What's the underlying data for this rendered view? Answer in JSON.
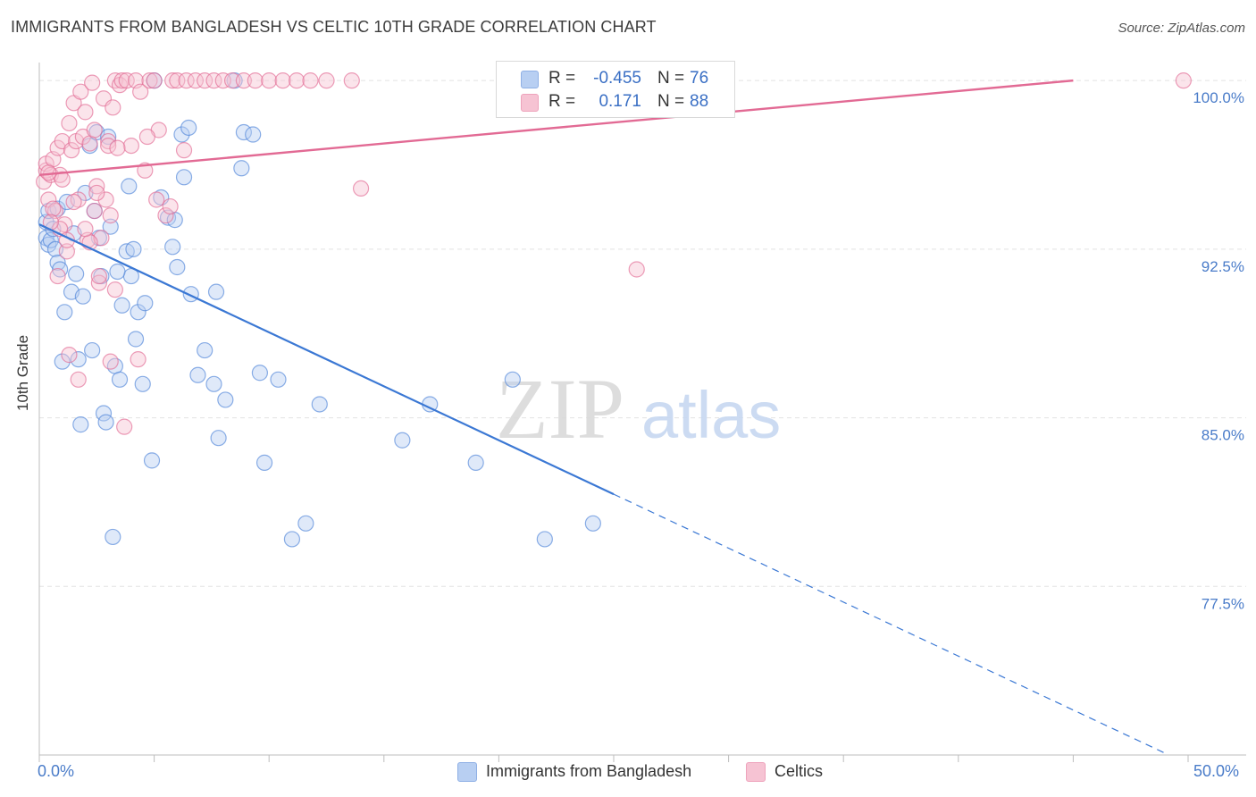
{
  "header": {
    "title": "IMMIGRANTS FROM BANGLADESH VS CELTIC 10TH GRADE CORRELATION CHART",
    "source": "Source: ZipAtlas.com"
  },
  "watermark": {
    "zip": "ZIP",
    "atlas": "atlas"
  },
  "legend": {
    "rows": [
      {
        "r_label": "R =",
        "r_value": "-0.455",
        "n_label": "N =",
        "n_value": "76",
        "color": "#a9c4ef"
      },
      {
        "r_label": "R =",
        "r_value": "0.171",
        "n_label": "N =",
        "n_value": "88",
        "color": "#f4b6c8"
      }
    ]
  },
  "bottom_legend": [
    {
      "label": "Immigrants from Bangladesh",
      "color": "#a9c4ef"
    },
    {
      "label": "Celtics",
      "color": "#f4b6c8"
    }
  ],
  "x_axis": {
    "min_label": "0.0%",
    "max_label": "50.0%"
  },
  "chart_data": {
    "type": "scatter",
    "title": "IMMIGRANTS FROM BANGLADESH VS CELTIC 10TH GRADE CORRELATION CHART",
    "xlabel": "",
    "ylabel": "10th Grade",
    "xlim": [
      0,
      50
    ],
    "ylim": [
      70,
      100.8
    ],
    "y_ticks": [
      100.0,
      92.5,
      85.0,
      77.5
    ],
    "y_tick_labels": [
      "100.0%",
      "92.5%",
      "85.0%",
      "77.5%"
    ],
    "x_tick_labels": [
      "0.0%",
      "50.0%"
    ],
    "grid": true,
    "series": [
      {
        "name": "Immigrants from Bangladesh",
        "color": "#4f84d8",
        "fill": "#b8cff2",
        "R": -0.455,
        "N": 76,
        "trend": {
          "x_start": 0.0,
          "y_start": 93.6,
          "x_solid_end": 25.0,
          "x_end": 49.0
        },
        "x": [
          0.3,
          0.3,
          0.4,
          0.4,
          0.5,
          0.6,
          0.7,
          0.8,
          0.8,
          0.9,
          1.0,
          1.1,
          1.2,
          1.4,
          1.5,
          1.6,
          1.7,
          1.8,
          1.9,
          2.0,
          2.2,
          2.3,
          2.4,
          2.5,
          2.7,
          2.8,
          2.9,
          3.0,
          3.1,
          3.2,
          3.3,
          3.5,
          3.6,
          3.8,
          4.0,
          4.1,
          4.3,
          4.5,
          4.6,
          4.9,
          5.0,
          5.3,
          5.6,
          5.8,
          6.0,
          6.3,
          6.6,
          6.9,
          7.2,
          7.6,
          7.8,
          8.1,
          8.5,
          8.9,
          9.3,
          9.8,
          10.4,
          11.0,
          11.6,
          12.2,
          6.2,
          6.5,
          7.7,
          8.8,
          9.6,
          2.6,
          3.4,
          4.2,
          3.9,
          5.9,
          17.0,
          19.0,
          20.6,
          22.0,
          24.1,
          15.8
        ],
        "y": [
          93.0,
          93.7,
          92.7,
          94.2,
          92.9,
          93.4,
          92.5,
          94.3,
          91.9,
          91.6,
          87.5,
          89.7,
          94.6,
          90.6,
          93.2,
          91.4,
          87.6,
          84.7,
          90.4,
          95.0,
          97.1,
          88.0,
          94.2,
          97.7,
          91.3,
          85.2,
          84.8,
          97.5,
          93.5,
          79.7,
          87.3,
          86.7,
          90.0,
          92.4,
          91.3,
          92.5,
          89.7,
          86.5,
          90.1,
          83.1,
          100.0,
          94.8,
          93.9,
          92.6,
          91.7,
          95.7,
          90.5,
          86.9,
          88.0,
          86.5,
          84.1,
          85.8,
          100.0,
          97.7,
          97.6,
          83.0,
          86.7,
          79.6,
          80.3,
          85.6,
          97.6,
          97.9,
          90.6,
          96.1,
          87.0,
          93.0,
          91.5,
          88.5,
          95.3,
          93.8,
          85.6,
          83.0,
          86.7,
          79.6,
          80.3,
          84.0
        ]
      },
      {
        "name": "Celtics",
        "color": "#e26a94",
        "fill": "#f6c3d3",
        "R": 0.171,
        "N": 88,
        "trend": {
          "x_start": 0.0,
          "y_start": 95.8,
          "x_end": 45.0,
          "y_end": 100.0
        },
        "x": [
          0.2,
          0.3,
          0.3,
          0.4,
          0.5,
          0.6,
          0.7,
          0.8,
          0.9,
          1.0,
          1.1,
          1.2,
          1.3,
          1.4,
          1.5,
          1.6,
          1.7,
          1.8,
          1.9,
          2.0,
          2.1,
          2.2,
          2.3,
          2.4,
          2.5,
          2.6,
          2.7,
          2.8,
          2.9,
          3.0,
          3.1,
          3.2,
          3.3,
          3.5,
          3.6,
          3.8,
          4.0,
          4.2,
          4.4,
          4.6,
          4.8,
          5.0,
          5.2,
          5.5,
          5.8,
          6.0,
          6.4,
          6.8,
          7.2,
          7.6,
          8.0,
          8.4,
          8.9,
          9.4,
          10.0,
          10.6,
          11.2,
          11.8,
          12.5,
          13.6,
          14.0,
          26.0,
          49.8,
          0.4,
          0.6,
          0.9,
          1.3,
          1.7,
          2.2,
          2.6,
          3.1,
          3.7,
          4.3,
          5.1,
          5.7,
          6.3,
          1.0,
          1.5,
          2.0,
          2.5,
          3.0,
          3.4,
          0.5,
          0.8,
          1.2,
          2.4,
          3.3,
          4.7
        ],
        "y": [
          95.5,
          96.0,
          96.3,
          94.7,
          95.8,
          96.5,
          94.2,
          97.0,
          95.8,
          97.3,
          93.6,
          92.4,
          98.1,
          96.9,
          99.0,
          97.3,
          94.7,
          99.5,
          97.5,
          98.6,
          92.9,
          97.2,
          99.9,
          97.8,
          95.3,
          91.0,
          93.0,
          99.2,
          94.7,
          97.3,
          94.0,
          98.8,
          100.0,
          99.8,
          100.0,
          100.0,
          97.1,
          100.0,
          99.5,
          96.0,
          100.0,
          100.0,
          97.8,
          94.0,
          100.0,
          100.0,
          100.0,
          100.0,
          100.0,
          100.0,
          100.0,
          100.0,
          100.0,
          100.0,
          100.0,
          100.0,
          100.0,
          100.0,
          100.0,
          100.0,
          95.2,
          91.6,
          100.0,
          95.9,
          94.3,
          93.4,
          87.8,
          86.7,
          92.8,
          91.3,
          87.5,
          84.6,
          87.6,
          94.7,
          94.4,
          96.9,
          95.6,
          94.6,
          93.4,
          95.0,
          97.1,
          97.0,
          93.7,
          91.3,
          92.9,
          94.2,
          90.7,
          97.5
        ]
      }
    ]
  }
}
